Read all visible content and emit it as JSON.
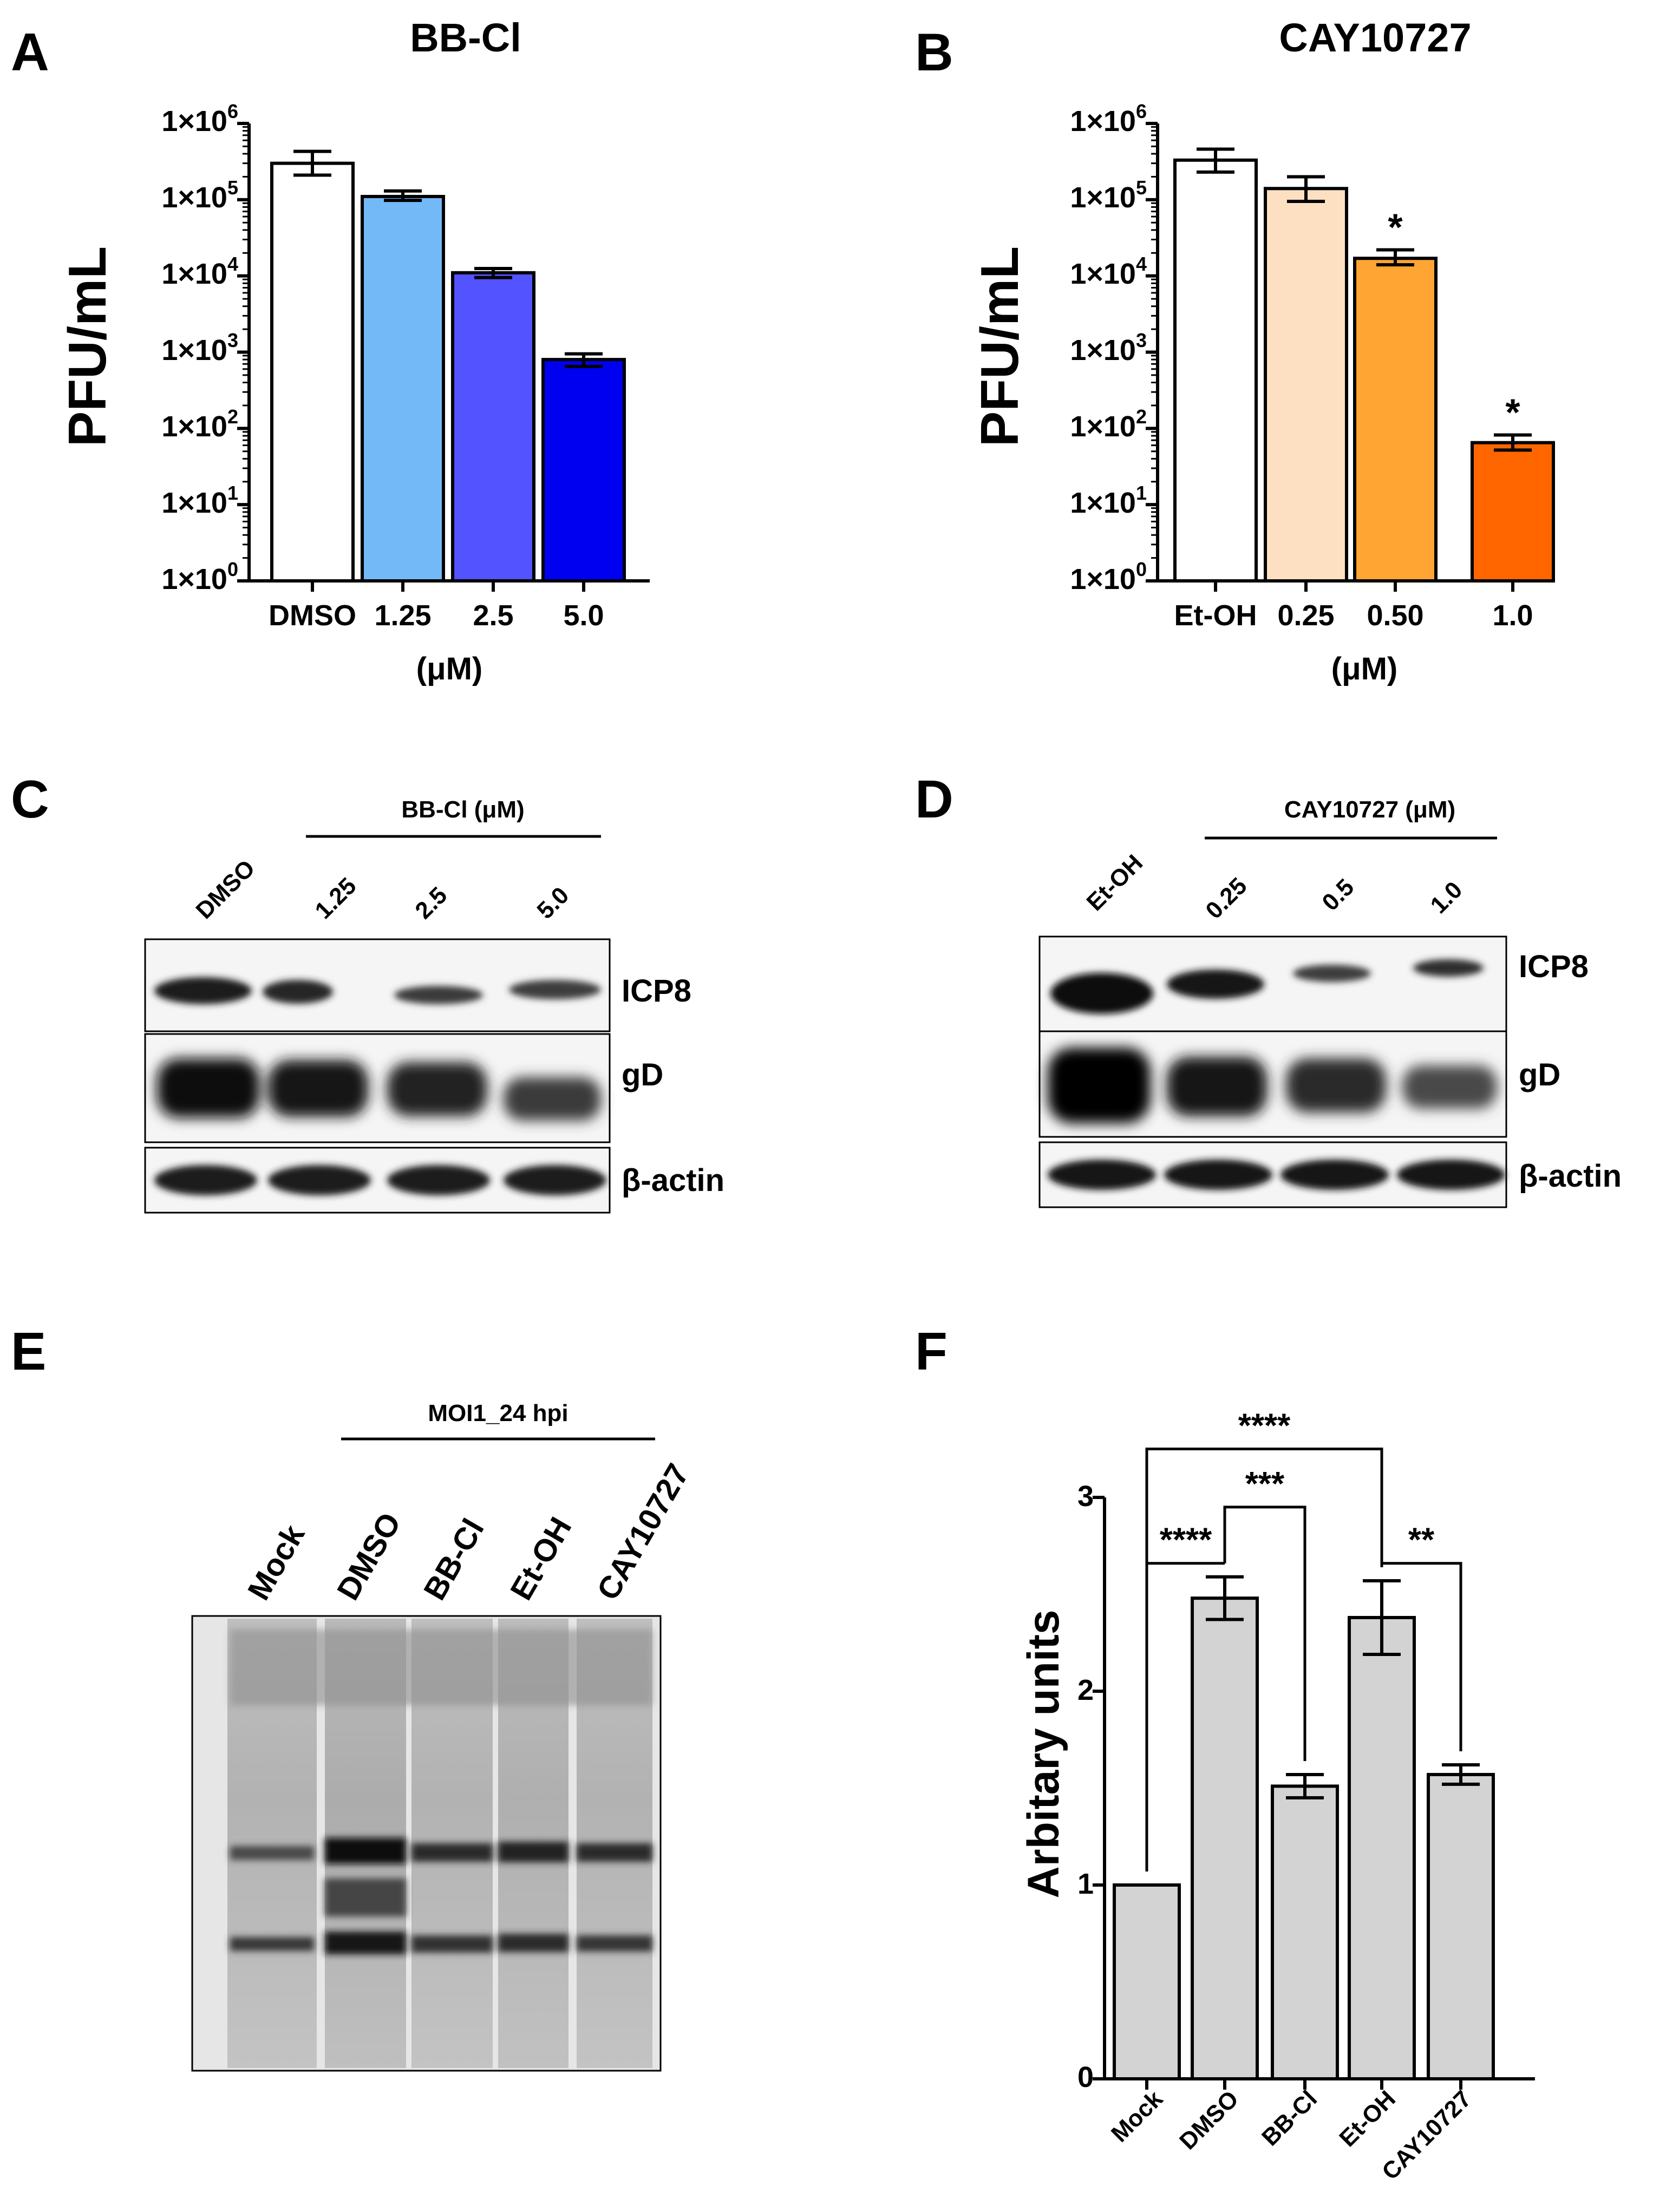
{
  "panels": {
    "A": {
      "letter": "A"
    },
    "B": {
      "letter": "B"
    },
    "C": {
      "letter": "C"
    },
    "D": {
      "letter": "D"
    },
    "E": {
      "letter": "E"
    },
    "F": {
      "letter": "F"
    }
  },
  "chart_data": [
    {
      "id": "A",
      "type": "bar",
      "title": "BB-Cl",
      "ylabel": "PFU/mL",
      "xlabel": "(μM)",
      "yscale": "log",
      "ylim": [
        1,
        1000000
      ],
      "ytick_values": [
        1,
        10,
        100,
        1000,
        10000,
        100000,
        1000000
      ],
      "ytick_labels": [
        {
          "base": "1×10",
          "exp": "0"
        },
        {
          "base": "1×10",
          "exp": "1"
        },
        {
          "base": "1×10",
          "exp": "2"
        },
        {
          "base": "1×10",
          "exp": "3"
        },
        {
          "base": "1×10",
          "exp": "4"
        },
        {
          "base": "1×10",
          "exp": "5"
        },
        {
          "base": "1×10",
          "exp": "6"
        }
      ],
      "categories": [
        "DMSO",
        "1.25",
        "2.5",
        "5.0"
      ],
      "values": [
        300000,
        110000,
        11000,
        800
      ],
      "err_low": [
        210000,
        98000,
        9500,
        650
      ],
      "err_high": [
        430000,
        130000,
        12500,
        950
      ],
      "colors": [
        "#ffffff",
        "#74b9f7",
        "#5353ff",
        "#0000f0"
      ],
      "significance": [
        "",
        "",
        "",
        ""
      ]
    },
    {
      "id": "B",
      "type": "bar",
      "title": "CAY10727",
      "ylabel": "PFU/mL",
      "xlabel": "(μM)",
      "yscale": "log",
      "ylim": [
        1,
        1000000
      ],
      "ytick_values": [
        1,
        10,
        100,
        1000,
        10000,
        100000,
        1000000
      ],
      "ytick_labels": [
        {
          "base": "1×10",
          "exp": "0"
        },
        {
          "base": "1×10",
          "exp": "1"
        },
        {
          "base": "1×10",
          "exp": "2"
        },
        {
          "base": "1×10",
          "exp": "3"
        },
        {
          "base": "1×10",
          "exp": "4"
        },
        {
          "base": "1×10",
          "exp": "5"
        },
        {
          "base": "1×10",
          "exp": "6"
        }
      ],
      "categories": [
        "Et-OH",
        "0.25",
        "0.50",
        "1.0"
      ],
      "values": [
        330000,
        140000,
        17000,
        65
      ],
      "err_low": [
        230000,
        95000,
        14000,
        52
      ],
      "err_high": [
        460000,
        200000,
        22000,
        82
      ],
      "colors": [
        "#ffffff",
        "#fde0c2",
        "#ffa533",
        "#ff6600"
      ],
      "significance": [
        "",
        "",
        "*",
        "*"
      ]
    },
    {
      "id": "F",
      "type": "bar",
      "title": "",
      "ylabel": "Arbitary units",
      "xlabel": "",
      "yscale": "linear",
      "ylim": [
        0,
        3
      ],
      "ytick_values": [
        0,
        1,
        2,
        3
      ],
      "ytick_labels": [
        "0",
        "1",
        "2",
        "3"
      ],
      "categories": [
        "Mock",
        "DMSO",
        "BB-Cl",
        "Et-OH",
        "CAY10727"
      ],
      "values": [
        1.0,
        2.48,
        1.51,
        2.38,
        1.57
      ],
      "err_low": [
        1.0,
        2.37,
        1.45,
        2.19,
        1.52
      ],
      "err_high": [
        1.0,
        2.59,
        1.57,
        2.57,
        1.62
      ],
      "colors": [
        "#d3d3d3",
        "#d3d3d3",
        "#d3d3d3",
        "#d3d3d3",
        "#d3d3d3"
      ],
      "comparisons": [
        {
          "from": 0,
          "to": 3,
          "label": "****",
          "level": 3.25
        },
        {
          "from": 1,
          "to": 2,
          "label": "***",
          "level": 2.95
        },
        {
          "from": 0,
          "to": 1,
          "label": "****",
          "level": 2.66
        },
        {
          "from": 3,
          "to": 4,
          "label": "**",
          "level": 2.66
        }
      ]
    }
  ],
  "blots": {
    "C": {
      "header": "BB-Cl (μM)",
      "lanes": [
        "DMSO",
        "1.25",
        "2.5",
        "5.0"
      ],
      "rows": [
        "ICP8",
        "gD",
        "β-actin"
      ]
    },
    "D": {
      "header": "CAY10727 (μM)",
      "lanes": [
        "Et-OH",
        "0.25",
        "0.5",
        "1.0"
      ],
      "rows": [
        "ICP8",
        "gD",
        "β-actin"
      ]
    },
    "E": {
      "header": "MOI1_24 hpi",
      "lanes": [
        "Mock",
        "DMSO",
        "BB-Cl",
        "Et-OH",
        "CAY10727"
      ]
    }
  }
}
